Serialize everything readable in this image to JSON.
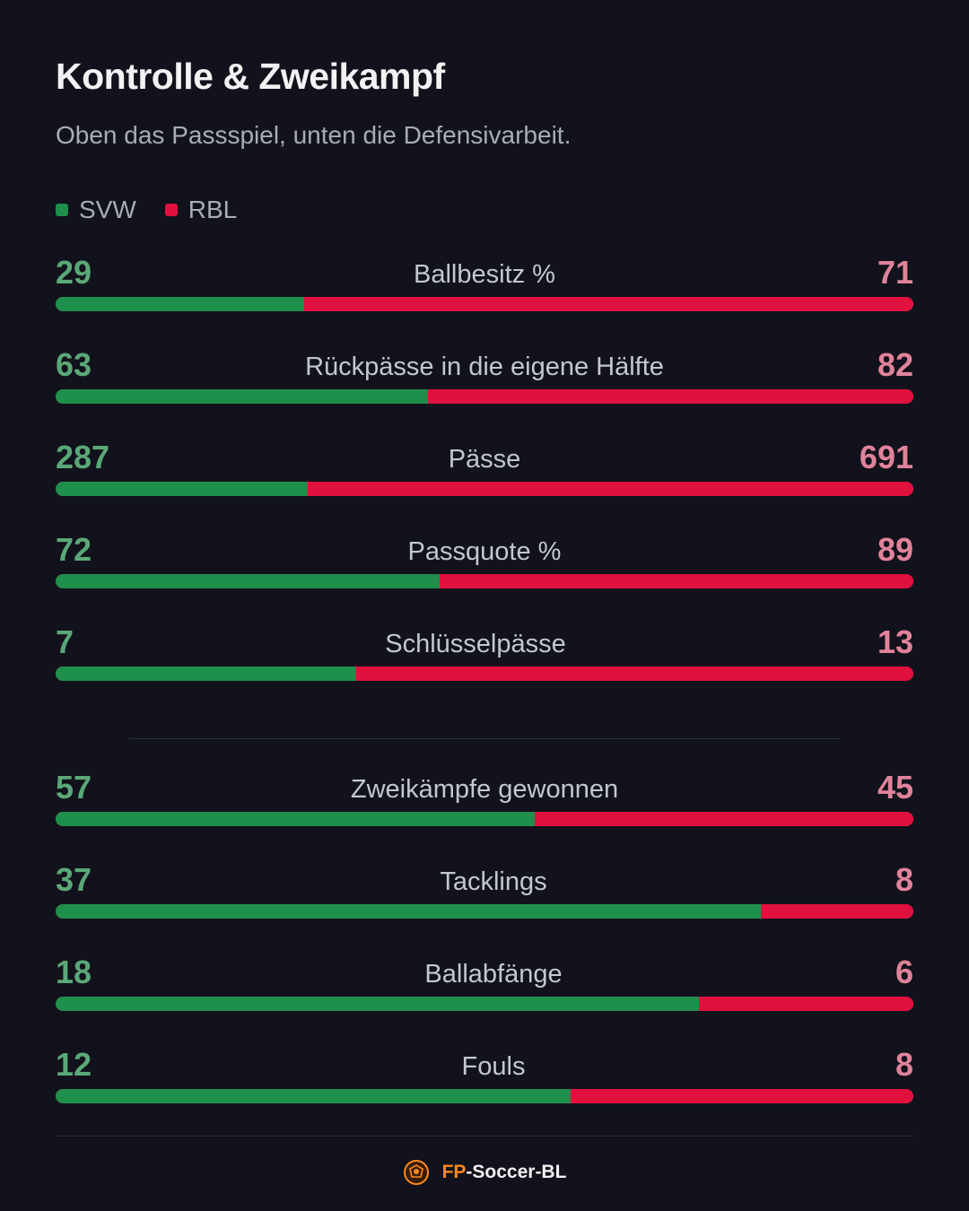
{
  "title": "Kontrolle & Zweikampf",
  "subtitle": "Oben das Passspiel, unten die Defensivarbeit.",
  "legend": [
    {
      "label": "SVW",
      "color": "#1f8f4c"
    },
    {
      "label": "RBL",
      "color": "#e0103f"
    }
  ],
  "chart_data": {
    "type": "bar",
    "series": [
      {
        "name": "SVW",
        "color": "#1f8f4c"
      },
      {
        "name": "RBL",
        "color": "#e0103f"
      }
    ],
    "groups": [
      {
        "stats": [
          {
            "label": "Ballbesitz %",
            "home": 29,
            "away": 71
          },
          {
            "label": "Rückpässe in die eigene Hälfte",
            "home": 63,
            "away": 82
          },
          {
            "label": "Pässe",
            "home": 287,
            "away": 691
          },
          {
            "label": "Passquote %",
            "home": 72,
            "away": 89
          },
          {
            "label": "Schlüsselpässe",
            "home": 7,
            "away": 13
          }
        ]
      },
      {
        "stats": [
          {
            "label": "Zweikämpfe gewonnen",
            "home": 57,
            "away": 45
          },
          {
            "label": "Tacklings",
            "home": 37,
            "away": 8
          },
          {
            "label": "Ballabfänge",
            "home": 18,
            "away": 6
          },
          {
            "label": "Fouls",
            "home": 12,
            "away": 8
          }
        ]
      }
    ]
  },
  "footer": {
    "brand_part1": "FP",
    "brand_part2": "-Soccer-BL",
    "logo_icon": "football-logo-icon"
  }
}
